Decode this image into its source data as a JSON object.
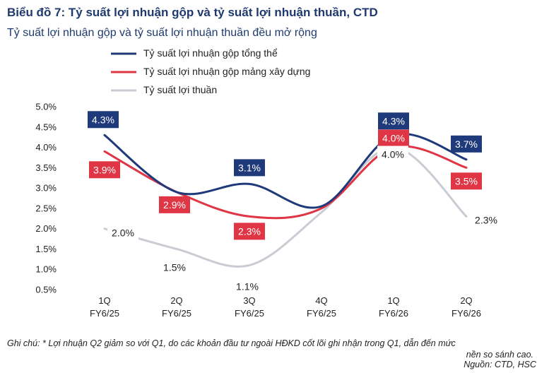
{
  "header": {
    "title": "Biểu đồ 7: Tỷ suất lợi nhuận gộp và tỷ suất lợi nhuận thuần, CTD",
    "subtitle": "Tỷ suất lợi nhuận gộp và tỷ suất lợi nhuận thuần đều mở rộng"
  },
  "chart_data": {
    "type": "line",
    "categories": [
      [
        "1Q",
        "FY6/25"
      ],
      [
        "2Q",
        "FY6/25"
      ],
      [
        "3Q",
        "FY6/25"
      ],
      [
        "4Q",
        "FY6/25"
      ],
      [
        "1Q",
        "FY6/26"
      ],
      [
        "2Q",
        "FY6/26"
      ]
    ],
    "ylim": [
      0.5,
      5.0
    ],
    "yticks": [
      "0.5%",
      "1.0%",
      "1.5%",
      "2.0%",
      "2.5%",
      "3.0%",
      "3.5%",
      "4.0%",
      "4.5%",
      "5.0%"
    ],
    "grid": false,
    "legend_position": "top-left",
    "series": [
      {
        "name": "Tỷ suất lợi nhuận gộp tổng thể",
        "color": "#1f3a7a",
        "values": [
          4.3,
          2.9,
          3.1,
          2.55,
          4.3,
          3.7
        ],
        "labels": [
          "4.3%",
          "",
          "3.1%",
          "",
          "4.3%",
          "3.7%"
        ]
      },
      {
        "name": "Tỷ suất lợi nhuận gộp mảng xây dựng",
        "color": "#e03545",
        "values": [
          3.9,
          2.9,
          2.3,
          2.5,
          4.0,
          3.5
        ],
        "labels": [
          "3.9%",
          "2.9%",
          "2.3%",
          "",
          "4.0%",
          "3.5%"
        ]
      },
      {
        "name": "Tỷ suất lợi thuần",
        "color": "#c9ccd3",
        "values": [
          2.0,
          1.5,
          1.1,
          2.4,
          4.0,
          2.3
        ],
        "labels": [
          "2.0%",
          "1.5%",
          "1.1%",
          "",
          "4.0%",
          "2.3%"
        ]
      }
    ]
  },
  "footnote": {
    "line1": "Ghi chú: * Lợi nhuận Q2 giảm so với Q1, do các khoản đầu tư ngoài HĐKD cốt lõi ghi nhận trong Q1, dẫn đến mức",
    "line2": "nền so sánh cao.",
    "source": "Nguồn: CTD, HSC"
  }
}
